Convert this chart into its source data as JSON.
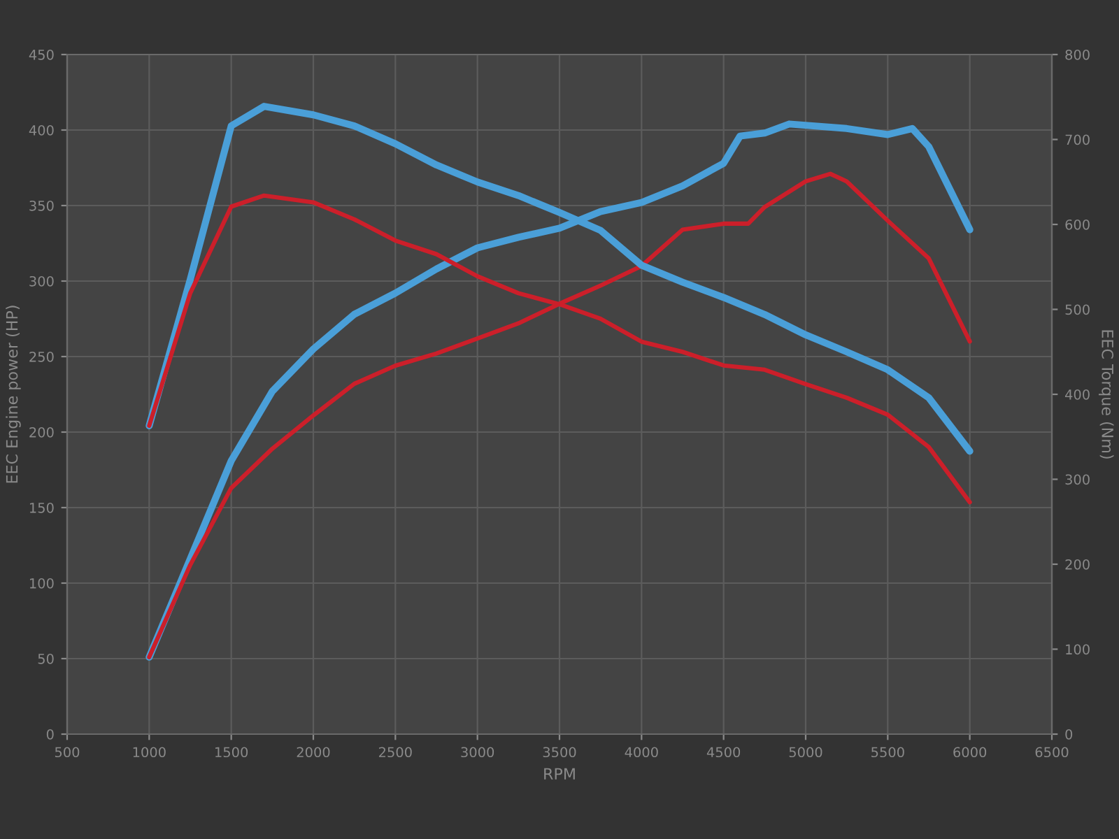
{
  "chart_data": {
    "type": "line",
    "xlabel": "RPM",
    "ylabel": "EEC Engine power (HP)",
    "y2label": "EEC Torque (Nm)",
    "xlim": [
      500,
      6500
    ],
    "xticks": [
      500,
      1000,
      1500,
      2000,
      2500,
      3000,
      3500,
      4000,
      4500,
      5000,
      5500,
      6000,
      6500
    ],
    "ylim": [
      0,
      450
    ],
    "yticks": [
      0,
      50,
      100,
      150,
      200,
      250,
      300,
      350,
      400,
      450
    ],
    "y2lim": [
      0,
      800
    ],
    "y2ticks": [
      0,
      100,
      200,
      300,
      400,
      500,
      600,
      700,
      800
    ],
    "grid": true,
    "marker": "none",
    "line_style": "solid",
    "series": [
      {
        "color": "#4a9fd8",
        "axis": "y2",
        "x": [
          1000,
          1250,
          1500,
          1700,
          2000,
          2250,
          2500,
          2750,
          3000,
          3250,
          3500,
          3750,
          4000,
          4250,
          4500,
          4750,
          5000,
          5250,
          5500,
          5750,
          6000
        ],
        "values": [
          363,
          535,
          716,
          739,
          729,
          716,
          695,
          670,
          650,
          634,
          614,
          593,
          552,
          532,
          514,
          494,
          470,
          450,
          429,
          396,
          333
        ]
      },
      {
        "color": "#cc1f2a",
        "axis": "y2",
        "x": [
          1000,
          1250,
          1500,
          1700,
          2000,
          2250,
          2500,
          2750,
          3000,
          3250,
          3500,
          3750,
          4000,
          4250,
          4500,
          4750,
          5000,
          5250,
          5500,
          5750,
          6000
        ],
        "values": [
          363,
          519,
          621,
          634,
          626,
          606,
          581,
          565,
          539,
          519,
          506,
          489,
          462,
          450,
          434,
          429,
          412,
          396,
          376,
          338,
          273
        ]
      },
      {
        "color": "#4a9fd8",
        "x": [
          1000,
          1250,
          1500,
          1750,
          2000,
          2250,
          2500,
          2750,
          3000,
          3250,
          3500,
          3750,
          4000,
          4250,
          4500,
          4600,
          4750,
          4900,
          5250,
          5500,
          5650,
          5750,
          6000
        ],
        "values": [
          51,
          116,
          181,
          227,
          255,
          278,
          292,
          308,
          322,
          329,
          335,
          346,
          352,
          363,
          378,
          396,
          398,
          404,
          401,
          397,
          401,
          389,
          334
        ]
      },
      {
        "color": "#cc1f2a",
        "x": [
          1000,
          1250,
          1500,
          1750,
          2000,
          2250,
          2500,
          2750,
          3000,
          3250,
          3500,
          3750,
          4000,
          4250,
          4500,
          4650,
          4750,
          5000,
          5150,
          5250,
          5500,
          5750,
          6000
        ],
        "values": [
          51,
          112,
          163,
          189,
          211,
          232,
          244,
          252,
          262,
          272,
          285,
          297,
          310,
          334,
          338,
          338,
          349,
          366,
          371,
          366,
          340,
          315,
          260
        ]
      }
    ]
  }
}
